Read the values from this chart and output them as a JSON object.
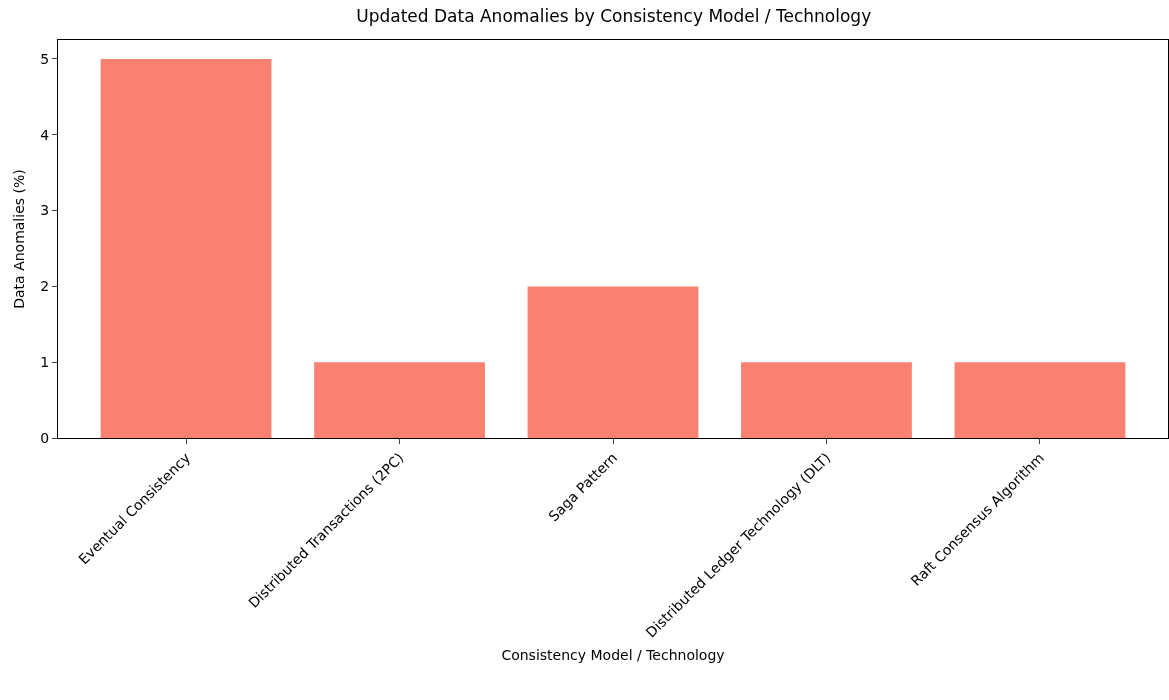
{
  "chart_data": {
    "type": "bar",
    "title": "Updated Data Anomalies by Consistency Model / Technology",
    "xlabel": "Consistency Model / Technology",
    "ylabel": "Data Anomalies (%)",
    "categories": [
      "Eventual Consistency",
      "Distributed Transactions (2PC)",
      "Saga Pattern",
      "Distributed Ledger Technology (DLT)",
      "Raft Consensus Algorithm"
    ],
    "values": [
      5,
      1,
      2,
      1,
      1
    ],
    "color": "#fa8072",
    "ylim": [
      0,
      5.25
    ],
    "yticks": [
      0,
      1,
      2,
      3,
      4,
      5
    ],
    "grid": false
  }
}
